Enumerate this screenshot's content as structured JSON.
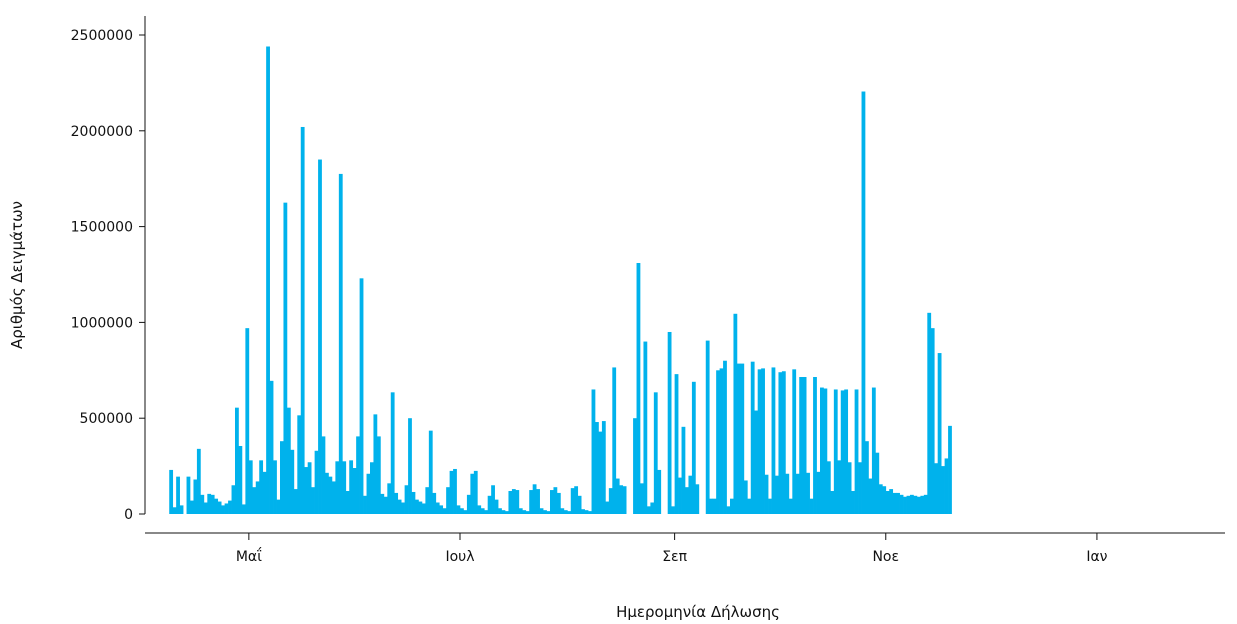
{
  "chart_data": {
    "type": "bar",
    "title": "",
    "xlabel": "Ημερομηνία Δήλωσης",
    "ylabel": "Αριθμός Δειγμάτων",
    "ylim": [
      0,
      2500000
    ],
    "y_ticks": [
      0,
      500000,
      1000000,
      1500000,
      2000000,
      2500000
    ],
    "y_tick_labels": [
      "0",
      "500000",
      "1000000",
      "1500000",
      "2000000",
      "2500000"
    ],
    "x_ticks": [
      {
        "date": "2020-05-01",
        "label": "Μαΐ"
      },
      {
        "date": "2020-07-01",
        "label": "Ιουλ"
      },
      {
        "date": "2020-09-01",
        "label": "Σεπ"
      },
      {
        "date": "2020-11-01",
        "label": "Νοε"
      },
      {
        "date": "2021-01-01",
        "label": "Ιαν"
      }
    ],
    "x_range": [
      "2020-04-01",
      "2021-02-07"
    ],
    "bar_color": "#00b2ec",
    "grid": false,
    "first_date": "2020-04-08",
    "values": [
      230000,
      35000,
      195000,
      45000,
      0,
      195000,
      70000,
      180000,
      340000,
      100000,
      60000,
      105000,
      100000,
      80000,
      65000,
      45000,
      55000,
      70000,
      150000,
      555000,
      355000,
      50000,
      970000,
      280000,
      140000,
      170000,
      280000,
      220000,
      2440000,
      695000,
      280000,
      75000,
      380000,
      1625000,
      555000,
      335000,
      130000,
      515000,
      2020000,
      245000,
      270000,
      140000,
      330000,
      1850000,
      405000,
      215000,
      195000,
      170000,
      275000,
      1775000,
      275000,
      120000,
      280000,
      240000,
      405000,
      1230000,
      95000,
      210000,
      270000,
      520000,
      405000,
      105000,
      90000,
      160000,
      635000,
      110000,
      75000,
      60000,
      150000,
      500000,
      115000,
      75000,
      65000,
      55000,
      140000,
      435000,
      110000,
      60000,
      45000,
      30000,
      140000,
      225000,
      235000,
      45000,
      30000,
      20000,
      100000,
      210000,
      225000,
      45000,
      30000,
      20000,
      95000,
      150000,
      75000,
      30000,
      20000,
      15000,
      120000,
      130000,
      125000,
      30000,
      20000,
      15000,
      125000,
      155000,
      130000,
      30000,
      20000,
      15000,
      125000,
      140000,
      110000,
      30000,
      20000,
      15000,
      135000,
      145000,
      95000,
      25000,
      20000,
      15000,
      650000,
      480000,
      430000,
      485000,
      65000,
      135000,
      765000,
      185000,
      150000,
      145000,
      0,
      0,
      500000,
      1310000,
      160000,
      900000,
      40000,
      60000,
      635000,
      230000,
      0,
      0,
      950000,
      40000,
      730000,
      190000,
      455000,
      140000,
      200000,
      690000,
      155000,
      0,
      0,
      905000,
      80000,
      80000,
      750000,
      760000,
      800000,
      40000,
      80000,
      1045000,
      785000,
      785000,
      175000,
      80000,
      795000,
      540000,
      755000,
      760000,
      205000,
      80000,
      765000,
      200000,
      740000,
      745000,
      210000,
      80000,
      755000,
      210000,
      715000,
      715000,
      215000,
      80000,
      715000,
      220000,
      660000,
      655000,
      275000,
      120000,
      650000,
      280000,
      645000,
      650000,
      270000,
      120000,
      650000,
      270000,
      2205000,
      380000,
      185000,
      660000,
      320000,
      155000,
      145000,
      120000,
      130000,
      110000,
      110000,
      100000,
      90000,
      95000,
      100000,
      95000,
      90000,
      95000,
      100000,
      1050000,
      970000,
      265000,
      840000,
      250000,
      290000,
      460000
    ]
  }
}
